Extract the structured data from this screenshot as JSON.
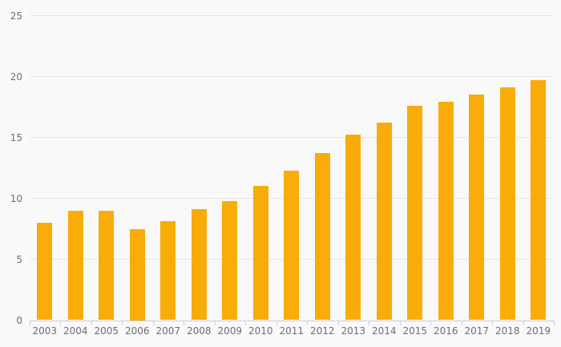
{
  "chart_data": {
    "type": "bar",
    "title": "",
    "xlabel": "",
    "ylabel": "",
    "categories": [
      "2003",
      "2004",
      "2005",
      "2006",
      "2007",
      "2008",
      "2009",
      "2010",
      "2011",
      "2012",
      "2013",
      "2014",
      "2015",
      "2016",
      "2017",
      "2018",
      "2019"
    ],
    "values": [
      8.0,
      9.0,
      9.0,
      7.5,
      8.1,
      9.1,
      9.8,
      11.0,
      12.3,
      13.7,
      15.2,
      16.2,
      17.6,
      17.9,
      18.5,
      19.1,
      19.7
    ],
    "ylim": [
      0,
      25
    ],
    "yticks": [
      0,
      5,
      10,
      15,
      20,
      25
    ],
    "grid": true,
    "legend": false,
    "colors": {
      "bar": "#F9AC08",
      "background": "#f9f9f9",
      "gridline": "#e6e6e6",
      "axis_line": "#c8d1dd",
      "label_text": "#6b6e73"
    }
  }
}
